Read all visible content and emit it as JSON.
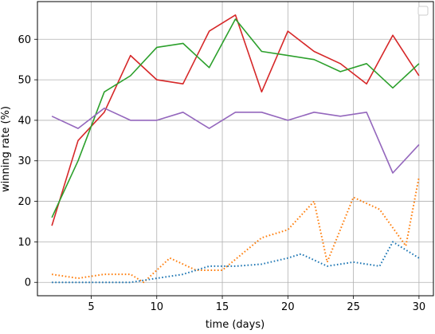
{
  "chart_data": {
    "type": "line",
    "title": "",
    "xlabel": "time (days)",
    "ylabel": "winning rate (%)",
    "xlim": [
      0.9,
      31.1
    ],
    "ylim": [
      -3.3,
      69.3
    ],
    "xticks": [
      5,
      10,
      15,
      20,
      25,
      30
    ],
    "yticks": [
      0,
      10,
      20,
      30,
      40,
      50,
      60
    ],
    "grid": true,
    "legend": {
      "placement": "top-right",
      "entries": []
    },
    "series": [
      {
        "color": "#d62728",
        "style": "solid",
        "x": [
          2,
          4,
          6,
          8,
          10,
          12,
          14,
          16,
          18,
          20,
          22,
          24,
          26,
          28,
          30
        ],
        "y": [
          14,
          35,
          42,
          56,
          50,
          49,
          62,
          66,
          47,
          62,
          57,
          54,
          49,
          61,
          51
        ]
      },
      {
        "color": "#2ca02c",
        "style": "solid",
        "x": [
          2,
          4,
          6,
          8,
          10,
          12,
          14,
          16,
          18,
          20,
          22,
          24,
          26,
          28,
          30
        ],
        "y": [
          16,
          30,
          47,
          51,
          58,
          59,
          53,
          65,
          57,
          56,
          55,
          52,
          54,
          48,
          54
        ]
      },
      {
        "color": "#9467bd",
        "style": "solid",
        "x": [
          2,
          4,
          6,
          8,
          10,
          12,
          14,
          16,
          18,
          20,
          22,
          24,
          26,
          28,
          30
        ],
        "y": [
          41,
          38,
          43,
          40,
          40,
          42,
          38,
          42,
          42,
          40,
          42,
          41,
          42,
          27,
          34
        ]
      },
      {
        "color": "#ff7f0e",
        "style": "dotted",
        "x": [
          2,
          4,
          6,
          8,
          9,
          11,
          13,
          15,
          18,
          20,
          22,
          23,
          25,
          27,
          29,
          30
        ],
        "y": [
          2,
          1,
          2,
          2,
          0,
          6,
          3,
          3,
          11,
          13,
          20,
          5,
          21,
          18,
          9,
          26
        ]
      },
      {
        "color": "#1f77b4",
        "style": "dotted",
        "x": [
          2,
          4,
          6,
          8,
          10,
          12,
          14,
          16,
          18,
          20,
          21,
          23,
          25,
          27,
          28,
          30
        ],
        "y": [
          0,
          0,
          0,
          0,
          1,
          2,
          4,
          4,
          4.5,
          6,
          7,
          4,
          5,
          4,
          10,
          6
        ]
      }
    ]
  }
}
